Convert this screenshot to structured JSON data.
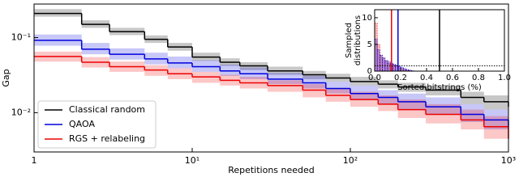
{
  "chart_data": [
    {
      "type": "line",
      "xlabel": "Repetitions needed",
      "ylabel": "Gap",
      "log_x": true,
      "log_y": true,
      "legend": "lower left",
      "xlim": [
        1,
        1000
      ],
      "ylim": [
        0.003,
        0.28
      ],
      "xticks": [
        1,
        {
          "value": 10,
          "label": "10¹"
        },
        {
          "value": 100,
          "label": "10²"
        },
        {
          "value": 1000,
          "label": "10³"
        }
      ],
      "yticks": [
        {
          "value": 0.01,
          "label": "10⁻²"
        },
        {
          "value": 0.1,
          "label": "10⁻¹"
        }
      ],
      "x": [
        1,
        2,
        3,
        5,
        7,
        10,
        15,
        20,
        30,
        50,
        70,
        100,
        150,
        200,
        300,
        500,
        700,
        1000
      ],
      "series": [
        {
          "name": "Classical random",
          "color": "#000000",
          "values": [
            0.21,
            0.15,
            0.12,
            0.095,
            0.075,
            0.055,
            0.047,
            0.042,
            0.036,
            0.032,
            0.029,
            0.026,
            0.024,
            0.022,
            0.02,
            0.016,
            0.014,
            0.012
          ],
          "upper": [
            0.24,
            0.17,
            0.135,
            0.107,
            0.085,
            0.063,
            0.053,
            0.047,
            0.041,
            0.036,
            0.033,
            0.03,
            0.027,
            0.025,
            0.023,
            0.019,
            0.017,
            0.015
          ],
          "lower": [
            0.19,
            0.135,
            0.108,
            0.085,
            0.067,
            0.049,
            0.042,
            0.037,
            0.032,
            0.028,
            0.026,
            0.023,
            0.021,
            0.019,
            0.017,
            0.013,
            0.011,
            0.009
          ]
        },
        {
          "name": "QAOA",
          "color": "#0000dd",
          "values": [
            0.092,
            0.07,
            0.06,
            0.052,
            0.046,
            0.041,
            0.036,
            0.033,
            0.028,
            0.025,
            0.021,
            0.018,
            0.016,
            0.014,
            0.012,
            0.0095,
            0.008,
            0.0065
          ],
          "upper": [
            0.11,
            0.085,
            0.072,
            0.063,
            0.056,
            0.05,
            0.044,
            0.04,
            0.034,
            0.031,
            0.026,
            0.023,
            0.02,
            0.018,
            0.016,
            0.013,
            0.011,
            0.009
          ],
          "lower": [
            0.078,
            0.06,
            0.051,
            0.044,
            0.039,
            0.035,
            0.031,
            0.028,
            0.024,
            0.021,
            0.018,
            0.015,
            0.013,
            0.011,
            0.0095,
            0.0075,
            0.006,
            0.0048
          ]
        },
        {
          "name": "RGS + relabeling",
          "color": "#ee0000",
          "values": [
            0.056,
            0.047,
            0.041,
            0.037,
            0.033,
            0.03,
            0.027,
            0.025,
            0.023,
            0.02,
            0.017,
            0.015,
            0.013,
            0.011,
            0.0095,
            0.008,
            0.0065,
            0.0045
          ],
          "upper": [
            0.065,
            0.055,
            0.048,
            0.043,
            0.039,
            0.035,
            0.032,
            0.03,
            0.027,
            0.024,
            0.021,
            0.019,
            0.017,
            0.015,
            0.013,
            0.011,
            0.009,
            0.0065
          ],
          "lower": [
            0.048,
            0.04,
            0.035,
            0.031,
            0.028,
            0.025,
            0.023,
            0.021,
            0.019,
            0.016,
            0.014,
            0.012,
            0.0105,
            0.0085,
            0.0072,
            0.006,
            0.0045,
            0.0031
          ]
        }
      ]
    },
    {
      "type": "histogram",
      "xlabel": "Sorted bitstrings (%)",
      "ylabel": [
        "Sampled",
        "distributions"
      ],
      "xlim": [
        0,
        1
      ],
      "ylim": [
        0,
        11.5
      ],
      "xticks": [
        {
          "value": 0,
          "label": "0.0"
        },
        0.2,
        0.4,
        0.6,
        0.8,
        {
          "value": 1,
          "label": "1.0"
        }
      ],
      "yticks": [
        0,
        5,
        10
      ],
      "bins": [
        0,
        0.02,
        0.04,
        0.06,
        0.08,
        0.1,
        0.12,
        0.14,
        0.16,
        0.18,
        0.2,
        0.22,
        0.24,
        0.26,
        0.28,
        0.3
      ],
      "series": [
        {
          "color": "#ee0000",
          "values": [
            9,
            5,
            3,
            2.5,
            2,
            1.5,
            1.3,
            1.1,
            1,
            0.8,
            0.5,
            0.3,
            0.2,
            0.1,
            0.05
          ]
        },
        {
          "color": "#0000dd",
          "values": [
            6,
            4,
            3,
            2.5,
            2,
            1.8,
            1.5,
            1.3,
            1.1,
            0.9,
            0.7,
            0.5,
            0.3,
            0.2,
            0.1
          ]
        }
      ],
      "vlines": [
        {
          "value": 0.13,
          "color": "#ee0000"
        },
        {
          "value": 0.18,
          "color": "#0000dd"
        },
        {
          "value": 0.5,
          "color": "#000000"
        }
      ],
      "hline": 1
    }
  ]
}
